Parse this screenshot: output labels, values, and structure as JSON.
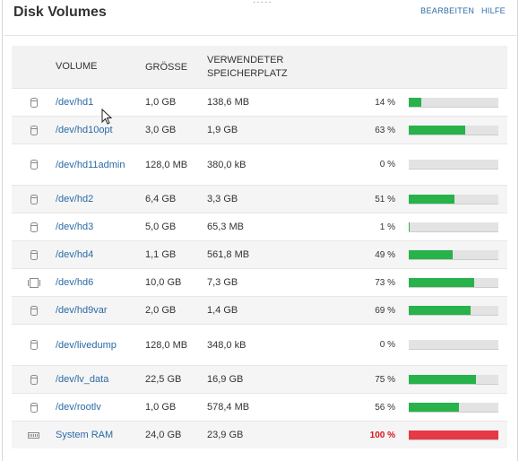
{
  "widget": {
    "title": "Disk Volumes",
    "actions": {
      "edit": "BEARBEITEN",
      "help": "HILFE"
    }
  },
  "table": {
    "headers": {
      "volume": "VOLUME",
      "size": "GRÖSSE",
      "used": "VERWENDETER SPEICHERPLATZ"
    },
    "rows": [
      {
        "icon": "disk-icon",
        "name": "/dev/hd1",
        "size": "1,0 GB",
        "used": "138,6 MB",
        "percent": "14 %",
        "fraction": 0.14,
        "alert": false
      },
      {
        "icon": "disk-icon",
        "name": "/dev/hd10opt",
        "size": "3,0 GB",
        "used": "1,9 GB",
        "percent": "63 %",
        "fraction": 0.63,
        "alert": false
      },
      {
        "icon": "disk-icon",
        "name": "/dev/hd11admin",
        "size": "128,0 MB",
        "used": "380,0 kB",
        "percent": "0 %",
        "fraction": 0.0,
        "alert": false
      },
      {
        "icon": "disk-icon",
        "name": "/dev/hd2",
        "size": "6,4 GB",
        "used": "3,3 GB",
        "percent": "51 %",
        "fraction": 0.51,
        "alert": false
      },
      {
        "icon": "disk-icon",
        "name": "/dev/hd3",
        "size": "5,0 GB",
        "used": "65,3 MB",
        "percent": "1 %",
        "fraction": 0.01,
        "alert": false
      },
      {
        "icon": "disk-icon",
        "name": "/dev/hd4",
        "size": "1,1 GB",
        "used": "561,8 MB",
        "percent": "49 %",
        "fraction": 0.49,
        "alert": false
      },
      {
        "icon": "chip-icon",
        "name": "/dev/hd6",
        "size": "10,0 GB",
        "used": "7,3 GB",
        "percent": "73 %",
        "fraction": 0.73,
        "alert": false
      },
      {
        "icon": "disk-icon",
        "name": "/dev/hd9var",
        "size": "2,0 GB",
        "used": "1,4 GB",
        "percent": "69 %",
        "fraction": 0.69,
        "alert": false
      },
      {
        "icon": "disk-icon",
        "name": "/dev/livedump",
        "size": "128,0 MB",
        "used": "348,0 kB",
        "percent": "0 %",
        "fraction": 0.0,
        "alert": false
      },
      {
        "icon": "disk-icon",
        "name": "/dev/lv_data",
        "size": "22,5 GB",
        "used": "16,9 GB",
        "percent": "75 %",
        "fraction": 0.75,
        "alert": false
      },
      {
        "icon": "disk-icon",
        "name": "/dev/rootlv",
        "size": "1,0 GB",
        "used": "578,4 MB",
        "percent": "56 %",
        "fraction": 0.56,
        "alert": false
      },
      {
        "icon": "ram-icon",
        "name": "System RAM",
        "size": "24,0 GB",
        "used": "23,9 GB",
        "percent": "100 %",
        "fraction": 1.0,
        "alert": true
      }
    ]
  },
  "colors": {
    "link": "#2a6aa6",
    "bar_ok": "#27b24a",
    "bar_alert": "#e53a45",
    "pct_alert": "#d9141c",
    "bar_track": "#e3e3e3"
  }
}
